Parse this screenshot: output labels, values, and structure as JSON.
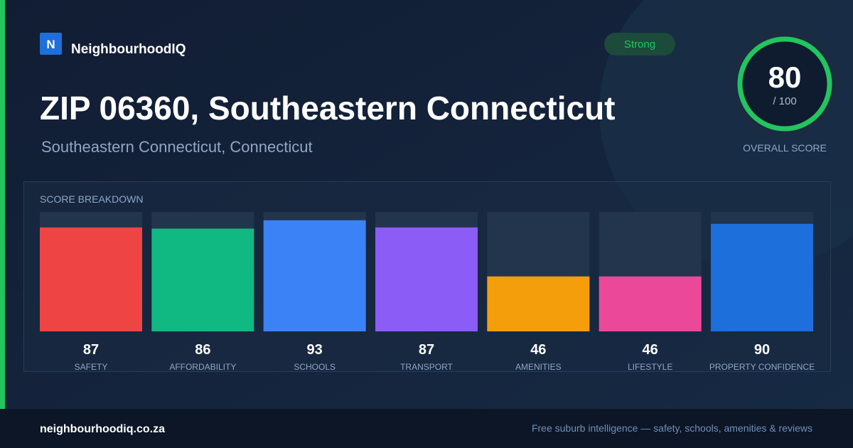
{
  "brand": {
    "logo_letter": "N",
    "name": "NeighbourhoodIQ"
  },
  "badge": "Strong",
  "header": {
    "title": "ZIP 06360, Southeastern Connecticut",
    "subtitle": "Southeastern Connecticut, Connecticut"
  },
  "score": {
    "value": 80,
    "max_label": "/ 100",
    "label": "OVERALL SCORE"
  },
  "chart_data": {
    "type": "bar",
    "title": "SCORE BREAKDOWN",
    "categories": [
      "SAFETY",
      "AFFORDABILITY",
      "SCHOOLS",
      "TRANSPORT",
      "AMENITIES",
      "LIFESTYLE",
      "PROPERTY CONFIDENCE"
    ],
    "values": [
      87,
      86,
      93,
      87,
      46,
      46,
      90
    ],
    "colors": [
      "#ef4444",
      "#10b981",
      "#3b82f6",
      "#8b5cf6",
      "#f59e0b",
      "#ec4899",
      "#1d6fdb"
    ],
    "ylim": [
      0,
      100
    ]
  },
  "footer": {
    "url": "neighbourhoodiq.co.za",
    "tagline": "Free suburb intelligence — safety, schools, amenities & reviews"
  }
}
